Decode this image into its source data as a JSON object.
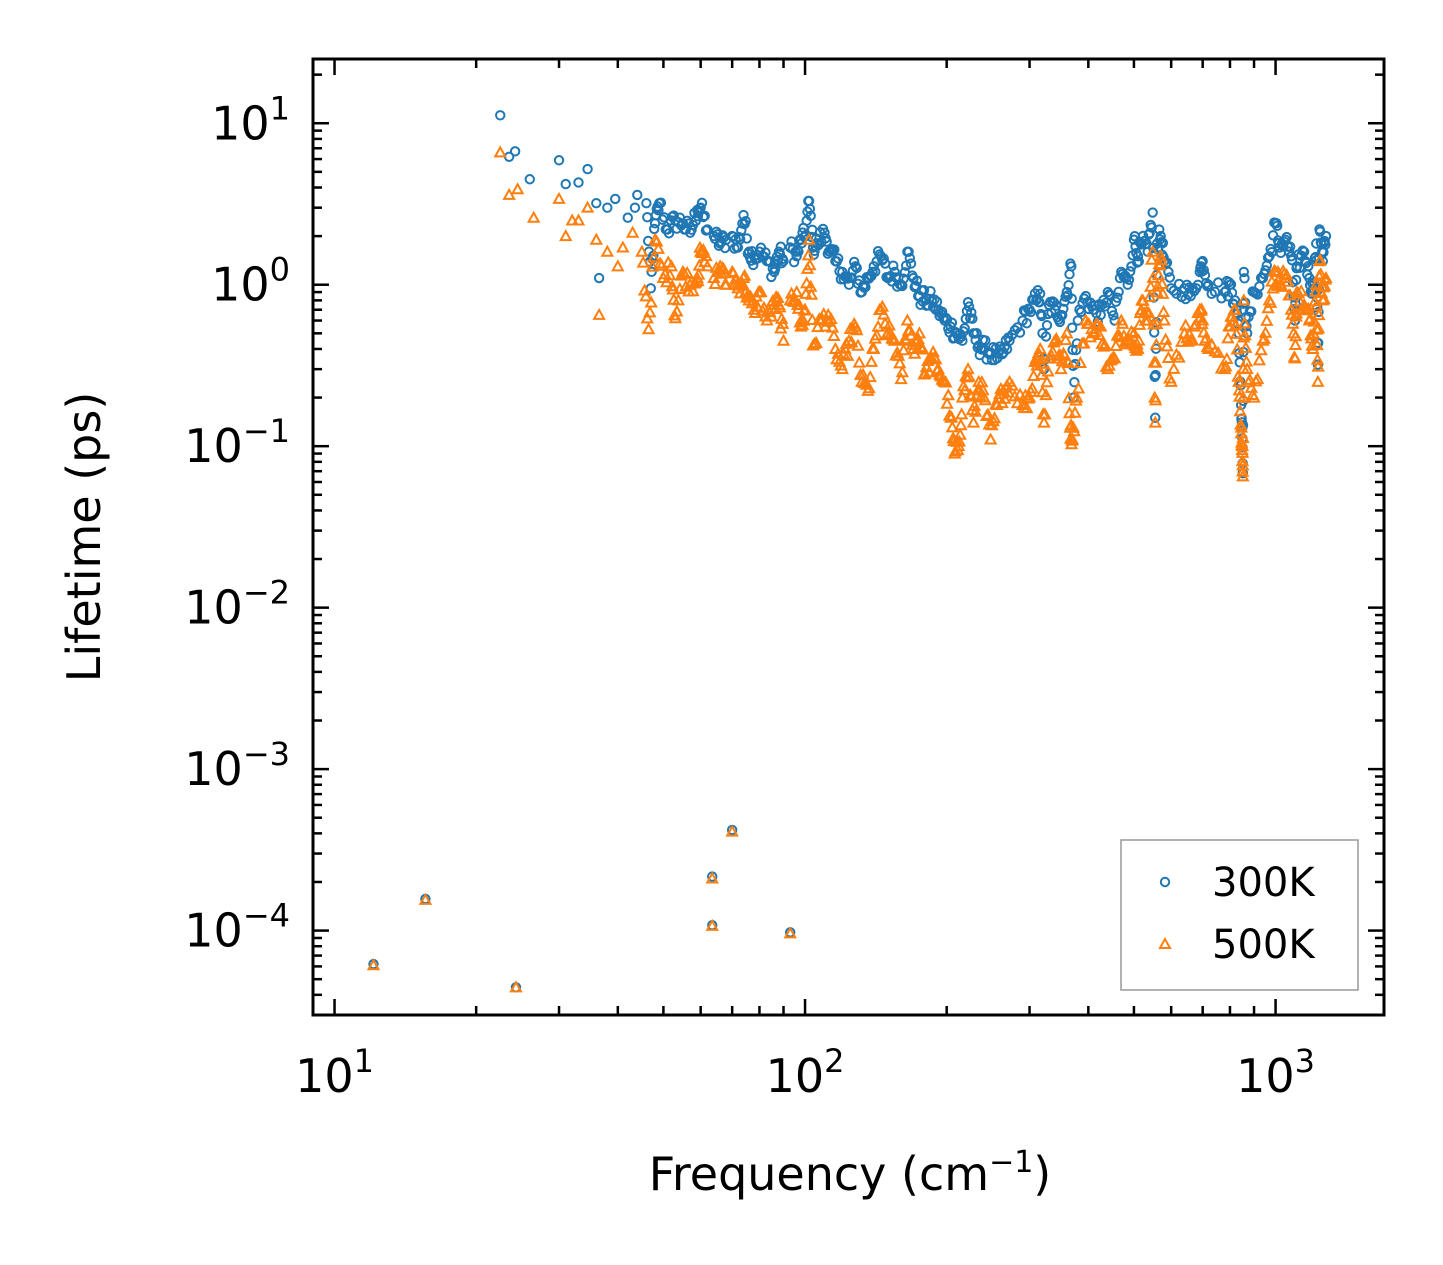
{
  "chart_data": {
    "type": "scatter",
    "xscale": "log",
    "yscale": "log",
    "xlim": [
      9,
      1700
    ],
    "ylim": [
      3e-05,
      25
    ],
    "xlabel": "Frequency (cm",
    "xlabel_sup": "−1",
    "xlabel_end": ")",
    "ylabel": "Lifetime (ps)",
    "x_ticks": [
      {
        "value": 10,
        "base": "10",
        "exp": "1"
      },
      {
        "value": 100,
        "base": "10",
        "exp": "2"
      },
      {
        "value": 1000,
        "base": "10",
        "exp": "3"
      }
    ],
    "y_ticks": [
      {
        "value": 10,
        "base": "10",
        "exp": "1"
      },
      {
        "value": 1,
        "base": "10",
        "exp": "0"
      },
      {
        "value": 0.1,
        "base": "10",
        "exp": "−1"
      },
      {
        "value": 0.01,
        "base": "10",
        "exp": "−2"
      },
      {
        "value": 0.001,
        "base": "10",
        "exp": "−3"
      },
      {
        "value": 0.0001,
        "base": "10",
        "exp": "−4"
      }
    ],
    "legend_position": "bottom-right",
    "series": [
      {
        "name": "300K",
        "marker": "circle",
        "color": "#1f77b4",
        "points": [
          [
            12.1,
            6.2e-05
          ],
          [
            15.6,
            0.000157
          ],
          [
            24.3,
            4.45e-05
          ],
          [
            63.5,
            0.000216
          ],
          [
            63.5,
            0.000108
          ],
          [
            70,
            0.00042
          ],
          [
            93,
            9.75e-05
          ],
          [
            22.5,
            11.2
          ],
          [
            23.5,
            6.2
          ],
          [
            24.2,
            6.7
          ],
          [
            26,
            4.5
          ],
          [
            30,
            5.9
          ],
          [
            31,
            4.2
          ],
          [
            33,
            4.3
          ],
          [
            34.5,
            5.2
          ],
          [
            36,
            3.2
          ],
          [
            36.5,
            1.1
          ],
          [
            38,
            3.0
          ],
          [
            39.5,
            3.4
          ],
          [
            42,
            2.6
          ],
          [
            43.5,
            3.0
          ],
          [
            44,
            3.6
          ],
          [
            46,
            3.2
          ],
          [
            47,
            0.95
          ],
          [
            48,
            2.4
          ],
          [
            49,
            3.2
          ],
          [
            51,
            2.2
          ],
          [
            53,
            2.5
          ],
          [
            55,
            2.4
          ],
          [
            57,
            2.1
          ],
          [
            59,
            2.9
          ],
          [
            60,
            3.0
          ],
          [
            62,
            2.2
          ],
          [
            64,
            2.0
          ],
          [
            66,
            1.8
          ],
          [
            68,
            1.9
          ],
          [
            70,
            2.0
          ],
          [
            72,
            1.7
          ],
          [
            74,
            2.7
          ],
          [
            76,
            1.6
          ],
          [
            78,
            1.5
          ],
          [
            80,
            1.6
          ],
          [
            83,
            1.4
          ],
          [
            86,
            1.2
          ],
          [
            88,
            1.6
          ],
          [
            90,
            1.4
          ],
          [
            93,
            1.7
          ],
          [
            96,
            1.5
          ],
          [
            98,
            1.9
          ],
          [
            100,
            2.0
          ],
          [
            102,
            3.3
          ],
          [
            104,
            1.7
          ],
          [
            106,
            1.8
          ],
          [
            110,
            2.1
          ],
          [
            113,
            1.6
          ],
          [
            116,
            1.4
          ],
          [
            120,
            1.2
          ],
          [
            124,
            1.0
          ],
          [
            128,
            1.3
          ],
          [
            132,
            0.9
          ],
          [
            136,
            1.1
          ],
          [
            140,
            1.3
          ],
          [
            145,
            1.5
          ],
          [
            150,
            1.1
          ],
          [
            155,
            1.2
          ],
          [
            160,
            1.0
          ],
          [
            165,
            1.6
          ],
          [
            170,
            1.1
          ],
          [
            175,
            0.85
          ],
          [
            180,
            0.8
          ],
          [
            186,
            0.8
          ],
          [
            192,
            0.7
          ],
          [
            198,
            0.6
          ],
          [
            204,
            0.55
          ],
          [
            210,
            0.5
          ],
          [
            216,
            0.45
          ],
          [
            222,
            0.78
          ],
          [
            228,
            0.5
          ],
          [
            234,
            0.42
          ],
          [
            240,
            0.4
          ],
          [
            248,
            0.38
          ],
          [
            256,
            0.35
          ],
          [
            264,
            0.38
          ],
          [
            272,
            0.45
          ],
          [
            290,
            0.6
          ],
          [
            300,
            0.7
          ],
          [
            310,
            0.8
          ],
          [
            316,
            0.88
          ],
          [
            322,
            0.3
          ],
          [
            330,
            0.75
          ],
          [
            340,
            0.7
          ],
          [
            350,
            0.65
          ],
          [
            360,
            0.9
          ],
          [
            368,
            1.3
          ],
          [
            372,
            0.2
          ],
          [
            380,
            0.6
          ],
          [
            395,
            0.85
          ],
          [
            410,
            0.7
          ],
          [
            425,
            0.65
          ],
          [
            440,
            0.9
          ],
          [
            455,
            0.6
          ],
          [
            470,
            1.2
          ],
          [
            485,
            1.0
          ],
          [
            500,
            1.9
          ],
          [
            510,
            1.5
          ],
          [
            520,
            1.8
          ],
          [
            535,
            1.6
          ],
          [
            548,
            2.8
          ],
          [
            555,
            0.15
          ],
          [
            560,
            1.8
          ],
          [
            570,
            2.0
          ],
          [
            580,
            1.4
          ],
          [
            600,
            0.95
          ],
          [
            640,
            0.95
          ],
          [
            660,
            0.85
          ],
          [
            690,
            1.2
          ],
          [
            700,
            1.4
          ],
          [
            720,
            1.0
          ],
          [
            780,
            0.9
          ],
          [
            800,
            1.0
          ],
          [
            820,
            0.8
          ],
          [
            835,
            0.5
          ],
          [
            845,
            0.18
          ],
          [
            850,
            0.13
          ],
          [
            852,
            0.068
          ],
          [
            856,
            1.2
          ],
          [
            870,
            0.5
          ],
          [
            900,
            0.9
          ],
          [
            940,
            1.1
          ],
          [
            970,
            1.5
          ],
          [
            1000,
            2.4
          ],
          [
            1020,
            1.7
          ],
          [
            1050,
            1.9
          ],
          [
            1080,
            1.5
          ],
          [
            1110,
            1.3
          ],
          [
            1150,
            1.6
          ],
          [
            1180,
            1.1
          ],
          [
            1200,
            0.9
          ],
          [
            1220,
            1.8
          ],
          [
            1240,
            2.2
          ],
          [
            1260,
            1.4
          ],
          [
            1280,
            2.0
          ],
          [
            1230,
            0.32
          ],
          [
            1100,
            0.6
          ]
        ]
      },
      {
        "name": "500K",
        "marker": "triangle",
        "color": "#ff7f0e",
        "points": [
          [
            12.1,
            6.1e-05
          ],
          [
            15.6,
            0.000155
          ],
          [
            24.3,
            4.45e-05
          ],
          [
            63.5,
            0.00021
          ],
          [
            63.5,
            0.000107
          ],
          [
            70,
            0.00041
          ],
          [
            93,
            9.6e-05
          ],
          [
            22.5,
            6.6
          ],
          [
            23.5,
            3.6
          ],
          [
            24.5,
            3.9
          ],
          [
            26.5,
            2.6
          ],
          [
            30,
            3.4
          ],
          [
            31,
            2.0
          ],
          [
            32,
            2.5
          ],
          [
            33,
            2.5
          ],
          [
            34.5,
            3.0
          ],
          [
            36,
            1.9
          ],
          [
            36.5,
            0.65
          ],
          [
            38,
            1.6
          ],
          [
            40,
            1.3
          ],
          [
            41,
            1.7
          ],
          [
            43,
            2.1
          ],
          [
            45,
            1.6
          ],
          [
            46.5,
            0.53
          ],
          [
            48,
            1.9
          ],
          [
            50,
            1.1
          ],
          [
            52,
            1.3
          ],
          [
            53,
            0.62
          ],
          [
            55,
            1.2
          ],
          [
            57,
            1.0
          ],
          [
            59,
            1.1
          ],
          [
            60,
            1.6
          ],
          [
            62,
            1.3
          ],
          [
            64,
            1.1
          ],
          [
            66,
            1.3
          ],
          [
            68,
            1.0
          ],
          [
            70,
            1.2
          ],
          [
            72,
            0.95
          ],
          [
            74,
            1.1
          ],
          [
            76,
            0.8
          ],
          [
            78,
            0.7
          ],
          [
            80,
            0.9
          ],
          [
            83,
            0.6
          ],
          [
            86,
            0.75
          ],
          [
            88,
            0.75
          ],
          [
            90,
            0.45
          ],
          [
            93,
            0.8
          ],
          [
            96,
            0.9
          ],
          [
            98,
            0.55
          ],
          [
            100,
            0.7
          ],
          [
            102,
            1.9
          ],
          [
            104,
            0.42
          ],
          [
            108,
            0.6
          ],
          [
            112,
            0.65
          ],
          [
            116,
            0.4
          ],
          [
            120,
            0.3
          ],
          [
            124,
            0.45
          ],
          [
            128,
            0.55
          ],
          [
            132,
            0.25
          ],
          [
            136,
            0.22
          ],
          [
            140,
            0.4
          ],
          [
            145,
            0.7
          ],
          [
            150,
            0.5
          ],
          [
            155,
            0.45
          ],
          [
            160,
            0.26
          ],
          [
            165,
            0.6
          ],
          [
            170,
            0.4
          ],
          [
            175,
            0.5
          ],
          [
            180,
            0.28
          ],
          [
            186,
            0.35
          ],
          [
            192,
            0.3
          ],
          [
            198,
            0.25
          ],
          [
            204,
            0.15
          ],
          [
            208,
            0.09
          ],
          [
            212,
            0.1
          ],
          [
            216,
            0.2
          ],
          [
            222,
            0.3
          ],
          [
            228,
            0.14
          ],
          [
            234,
            0.25
          ],
          [
            240,
            0.2
          ],
          [
            248,
            0.11
          ],
          [
            256,
            0.18
          ],
          [
            264,
            0.22
          ],
          [
            272,
            0.25
          ],
          [
            290,
            0.18
          ],
          [
            300,
            0.2
          ],
          [
            310,
            0.35
          ],
          [
            316,
            0.4
          ],
          [
            322,
            0.14
          ],
          [
            330,
            0.35
          ],
          [
            340,
            0.45
          ],
          [
            350,
            0.3
          ],
          [
            360,
            0.5
          ],
          [
            366,
            0.13
          ],
          [
            370,
            0.11
          ],
          [
            378,
            0.2
          ],
          [
            395,
            0.6
          ],
          [
            410,
            0.5
          ],
          [
            425,
            0.55
          ],
          [
            440,
            0.3
          ],
          [
            455,
            0.35
          ],
          [
            470,
            0.6
          ],
          [
            485,
            0.45
          ],
          [
            500,
            0.5
          ],
          [
            510,
            0.4
          ],
          [
            520,
            0.8
          ],
          [
            535,
            0.6
          ],
          [
            548,
            1.6
          ],
          [
            555,
            0.14
          ],
          [
            560,
            0.9
          ],
          [
            570,
            1.5
          ],
          [
            580,
            0.6
          ],
          [
            600,
            0.25
          ],
          [
            640,
            0.5
          ],
          [
            660,
            0.45
          ],
          [
            690,
            0.7
          ],
          [
            700,
            0.6
          ],
          [
            720,
            0.4
          ],
          [
            780,
            0.3
          ],
          [
            800,
            0.55
          ],
          [
            820,
            0.7
          ],
          [
            835,
            0.25
          ],
          [
            845,
            0.12
          ],
          [
            850,
            0.1
          ],
          [
            852,
            0.065
          ],
          [
            856,
            0.8
          ],
          [
            870,
            0.3
          ],
          [
            900,
            0.2
          ],
          [
            940,
            0.45
          ],
          [
            970,
            0.8
          ],
          [
            1000,
            1.2
          ],
          [
            1020,
            1.0
          ],
          [
            1050,
            1.1
          ],
          [
            1080,
            0.7
          ],
          [
            1110,
            0.9
          ],
          [
            1150,
            0.75
          ],
          [
            1180,
            0.6
          ],
          [
            1200,
            0.4
          ],
          [
            1220,
            1.0
          ],
          [
            1240,
            1.4
          ],
          [
            1260,
            0.8
          ],
          [
            1280,
            1.1
          ],
          [
            1230,
            0.25
          ],
          [
            1100,
            0.35
          ]
        ]
      }
    ]
  }
}
